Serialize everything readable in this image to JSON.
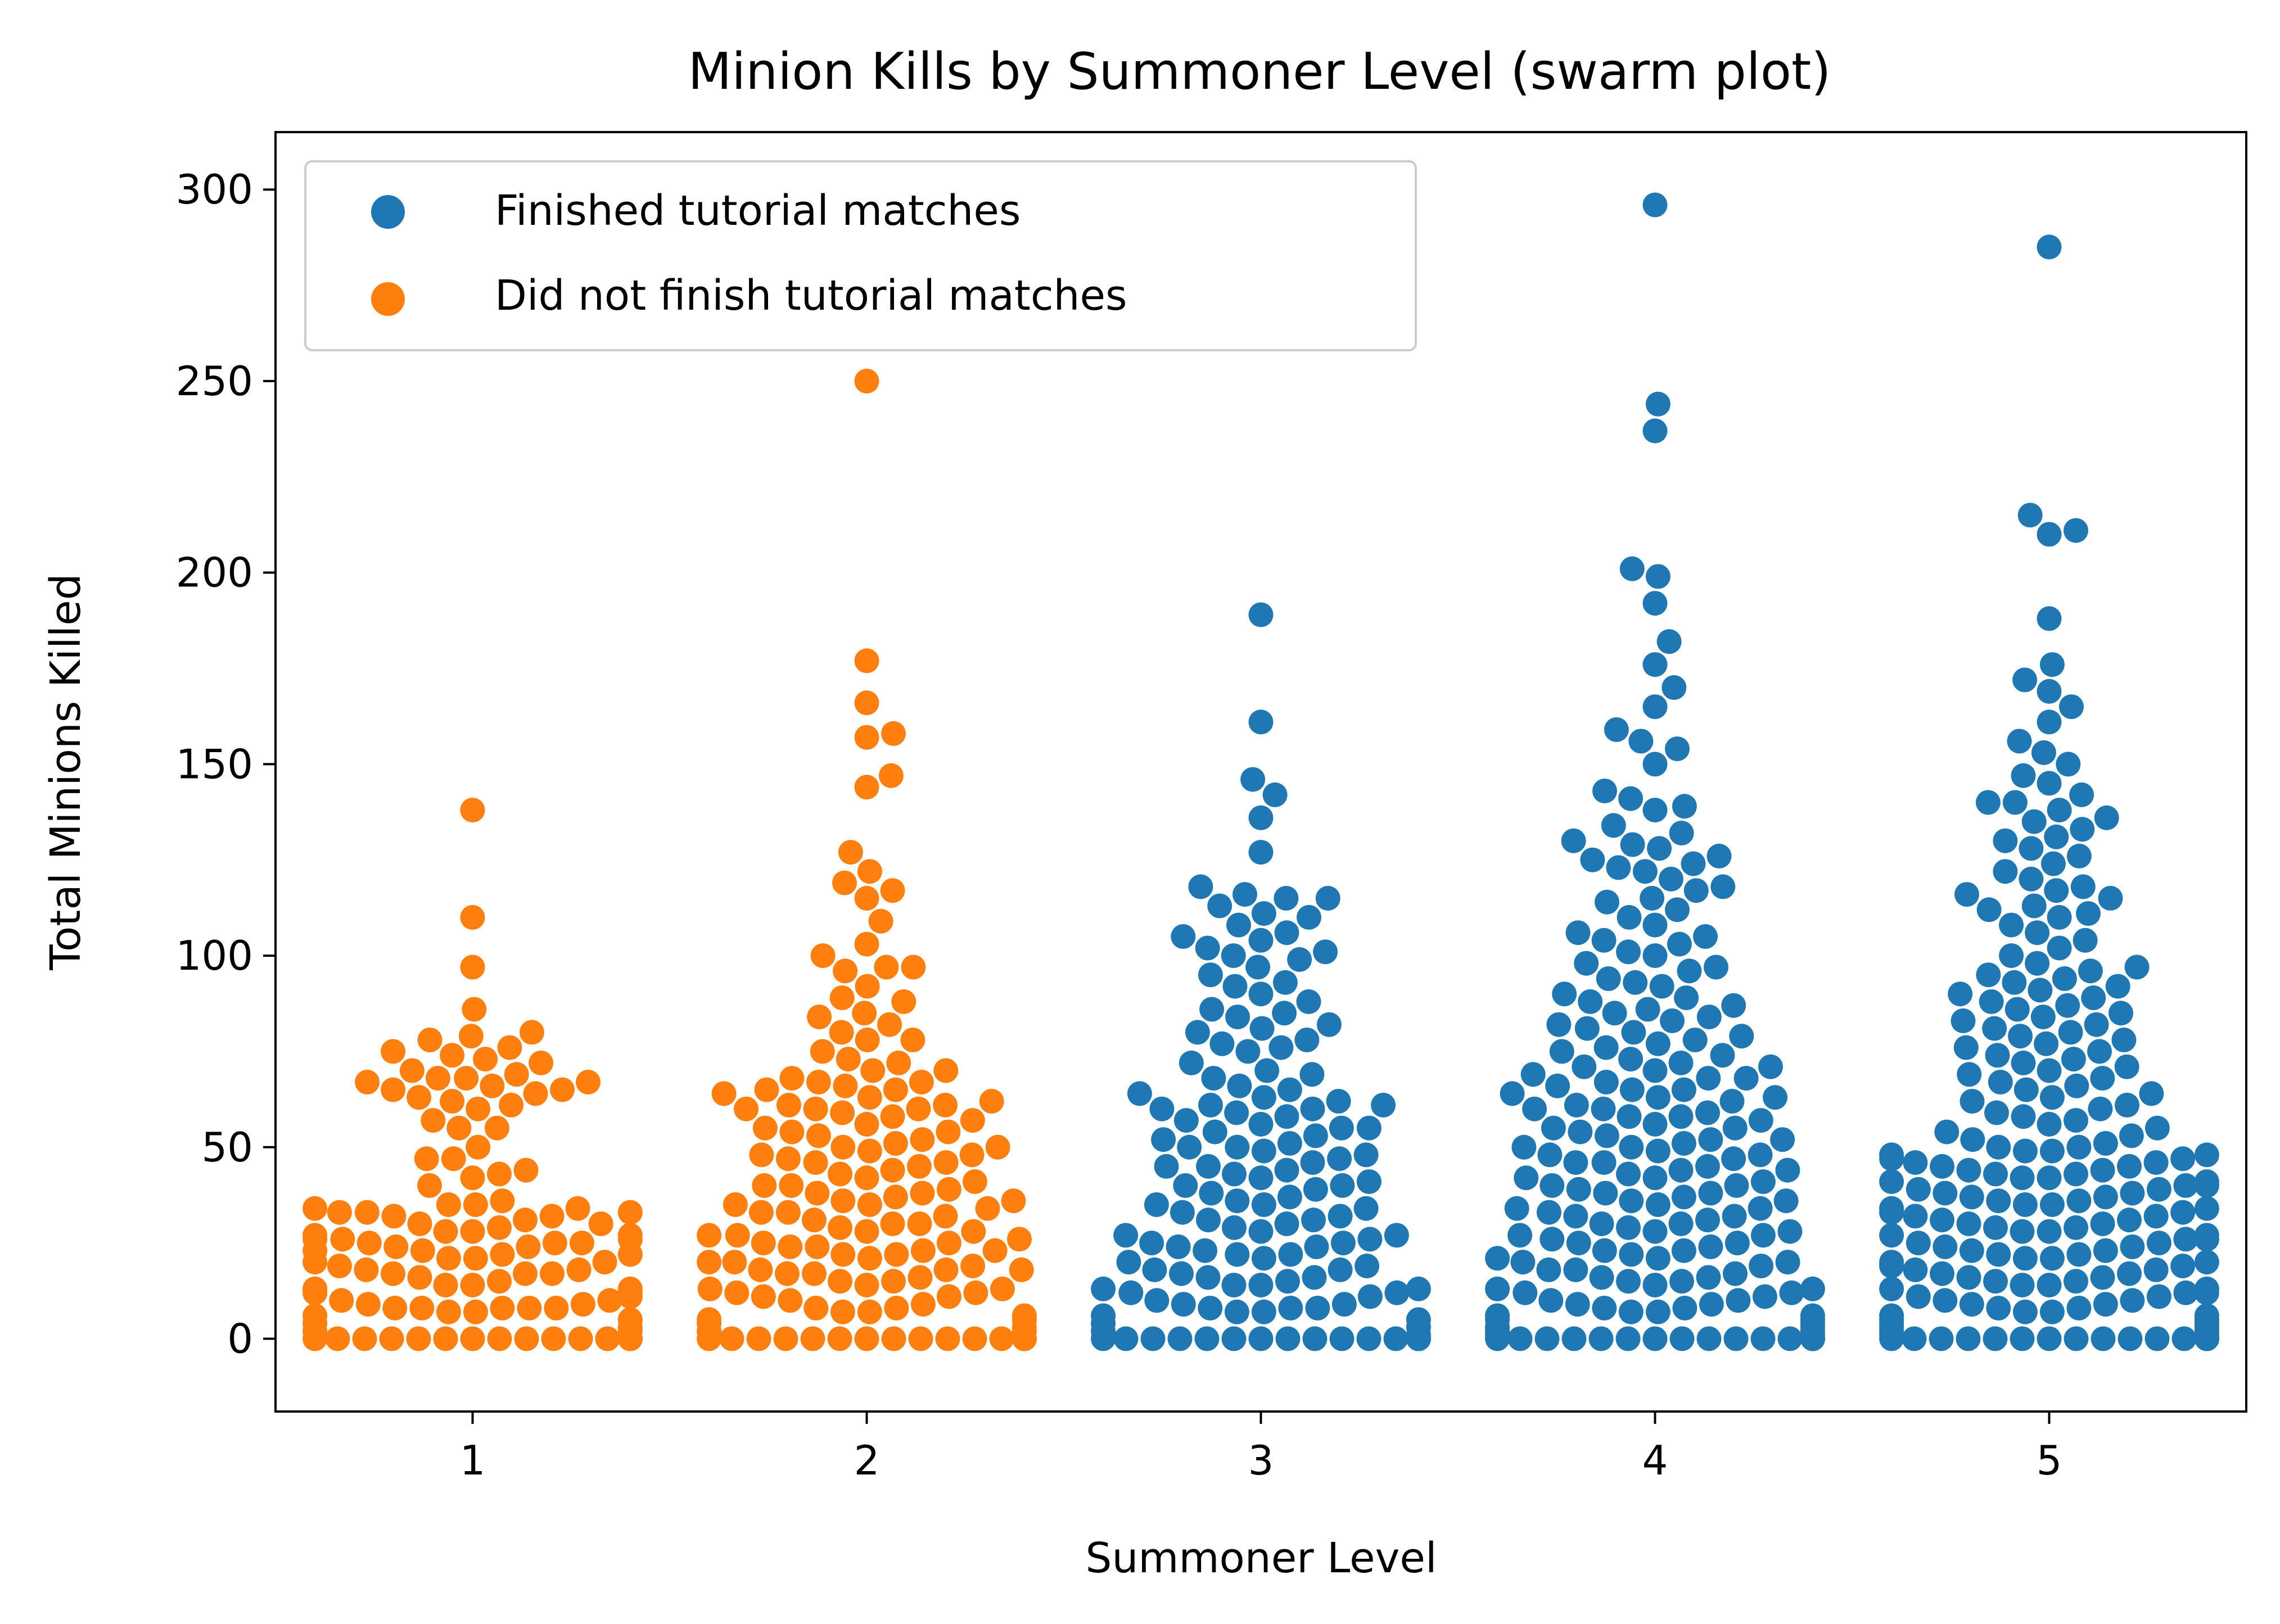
{
  "chart_data": {
    "type": "scatter",
    "style": "swarm",
    "title": "Minion Kills by Summoner Level (swarm plot)",
    "xlabel": "Summoner Level",
    "ylabel": "Total Minions Killed",
    "categories": [
      "1",
      "2",
      "3",
      "4",
      "5"
    ],
    "xlim": [
      0.5,
      5.5
    ],
    "ylim": [
      -19,
      315
    ],
    "yticks": [
      0,
      50,
      100,
      150,
      200,
      250,
      300
    ],
    "grid": false,
    "legend": {
      "placement": "top-left",
      "entries": [
        {
          "label": "Finished tutorial matches",
          "color": "#1f77b4"
        },
        {
          "label": "Did not finish tutorial matches",
          "color": "#ff7f0e"
        }
      ]
    },
    "colors": {
      "finished": "#1f77b4",
      "not_finished": "#ff7f0e"
    },
    "series": [
      {
        "name": "Did not finish tutorial matches",
        "color": "#ff7f0e",
        "groups": [
          {
            "category": "1",
            "values": [
              0,
              0,
              0,
              0,
              0,
              0,
              0,
              0,
              0,
              0,
              0,
              0,
              0,
              0,
              0,
              0,
              0,
              0,
              0,
              2,
              2,
              3,
              4,
              5,
              6,
              7,
              7,
              8,
              8,
              8,
              8,
              8,
              9,
              9,
              10,
              10,
              11,
              12,
              12,
              12,
              13,
              13,
              13,
              14,
              14,
              15,
              16,
              17,
              17,
              17,
              18,
              18,
              19,
              20,
              20,
              21,
              21,
              22,
              22,
              23,
              23,
              24,
              24,
              25,
              25,
              25,
              26,
              26,
              26,
              27,
              27,
              28,
              28,
              29,
              30,
              30,
              31,
              32,
              32,
              33,
              33,
              33,
              34,
              34,
              35,
              35,
              36,
              40,
              42,
              43,
              44,
              47,
              47,
              50,
              55,
              55,
              57,
              60,
              61,
              62,
              63,
              64,
              65,
              65,
              66,
              67,
              67,
              68,
              68,
              69,
              70,
              72,
              73,
              74,
              75,
              76,
              78,
              79,
              80,
              86,
              97,
              110,
              138
            ]
          },
          {
            "category": "2",
            "values": [
              0,
              0,
              0,
              0,
              0,
              0,
              0,
              0,
              0,
              0,
              0,
              0,
              0,
              0,
              0,
              0,
              0,
              0,
              0,
              2,
              2,
              3,
              4,
              5,
              5,
              6,
              7,
              7,
              8,
              8,
              9,
              10,
              11,
              11,
              12,
              12,
              13,
              13,
              14,
              15,
              15,
              16,
              17,
              17,
              18,
              18,
              18,
              19,
              20,
              20,
              21,
              22,
              22,
              23,
              23,
              24,
              24,
              25,
              25,
              26,
              27,
              27,
              28,
              28,
              29,
              30,
              30,
              31,
              32,
              33,
              33,
              34,
              35,
              35,
              36,
              36,
              37,
              38,
              38,
              39,
              40,
              40,
              41,
              42,
              43,
              44,
              45,
              46,
              46,
              47,
              48,
              48,
              49,
              50,
              50,
              51,
              52,
              53,
              54,
              54,
              55,
              56,
              57,
              58,
              59,
              60,
              60,
              60,
              61,
              61,
              62,
              63,
              64,
              65,
              65,
              66,
              67,
              67,
              68,
              70,
              70,
              72,
              73,
              75,
              78,
              78,
              80,
              82,
              84,
              85,
              88,
              89,
              92,
              96,
              97,
              97,
              100,
              103,
              109,
              115,
              117,
              119,
              122,
              127,
              144,
              147,
              157,
              158,
              166,
              177,
              250
            ]
          }
        ]
      },
      {
        "name": "Finished tutorial matches",
        "color": "#1f77b4",
        "groups": [
          {
            "category": "3",
            "values": [
              0,
              0,
              0,
              0,
              0,
              0,
              0,
              0,
              0,
              0,
              0,
              0,
              0,
              0,
              0,
              0,
              0,
              0,
              0,
              0,
              0,
              0,
              1,
              2,
              3,
              4,
              5,
              6,
              7,
              7,
              8,
              8,
              8,
              9,
              9,
              10,
              11,
              12,
              12,
              13,
              13,
              14,
              14,
              15,
              16,
              16,
              17,
              18,
              18,
              19,
              20,
              21,
              22,
              22,
              23,
              24,
              24,
              25,
              25,
              26,
              27,
              27,
              28,
              29,
              30,
              31,
              31,
              32,
              33,
              34,
              35,
              35,
              36,
              37,
              38,
              39,
              40,
              40,
              41,
              42,
              43,
              44,
              45,
              45,
              46,
              47,
              48,
              49,
              50,
              50,
              51,
              52,
              53,
              54,
              55,
              55,
              56,
              57,
              58,
              59,
              60,
              60,
              61,
              61,
              62,
              63,
              64,
              65,
              66,
              68,
              69,
              70,
              72,
              75,
              76,
              77,
              78,
              80,
              81,
              82,
              84,
              85,
              86,
              88,
              90,
              92,
              93,
              95,
              97,
              99,
              100,
              101,
              102,
              104,
              105,
              106,
              108,
              110,
              111,
              113,
              115,
              115,
              116,
              118,
              127,
              136,
              142,
              146,
              161,
              189
            ]
          },
          {
            "category": "4",
            "values": [
              0,
              0,
              0,
              0,
              0,
              0,
              0,
              0,
              0,
              0,
              0,
              0,
              0,
              0,
              0,
              0,
              0,
              1,
              1,
              2,
              2,
              3,
              3,
              4,
              5,
              5,
              6,
              6,
              7,
              7,
              8,
              8,
              9,
              9,
              10,
              10,
              11,
              12,
              12,
              13,
              13,
              14,
              15,
              15,
              16,
              16,
              17,
              18,
              18,
              19,
              20,
              20,
              21,
              21,
              22,
              23,
              23,
              24,
              25,
              25,
              26,
              27,
              27,
              28,
              28,
              29,
              30,
              30,
              31,
              32,
              32,
              33,
              34,
              34,
              35,
              36,
              36,
              37,
              38,
              38,
              39,
              40,
              40,
              41,
              42,
              42,
              43,
              44,
              44,
              45,
              46,
              46,
              47,
              48,
              48,
              49,
              50,
              50,
              51,
              52,
              52,
              53,
              54,
              55,
              55,
              56,
              57,
              58,
              58,
              59,
              60,
              60,
              61,
              62,
              63,
              63,
              64,
              65,
              65,
              66,
              67,
              68,
              68,
              69,
              70,
              71,
              71,
              72,
              73,
              74,
              75,
              76,
              77,
              78,
              79,
              80,
              81,
              82,
              83,
              84,
              85,
              86,
              87,
              88,
              89,
              90,
              92,
              93,
              94,
              96,
              97,
              98,
              100,
              101,
              103,
              104,
              105,
              106,
              108,
              110,
              112,
              114,
              115,
              117,
              118,
              120,
              122,
              123,
              124,
              125,
              126,
              128,
              129,
              130,
              132,
              134,
              138,
              139,
              141,
              143,
              150,
              154,
              156,
              159,
              165,
              170,
              176,
              182,
              192,
              199,
              201,
              237,
              244,
              296
            ]
          },
          {
            "category": "5",
            "values": [
              0,
              0,
              0,
              0,
              0,
              0,
              0,
              0,
              0,
              0,
              0,
              0,
              0,
              0,
              0,
              0,
              0,
              0,
              1,
              1,
              2,
              2,
              3,
              3,
              4,
              4,
              5,
              5,
              6,
              6,
              7,
              7,
              8,
              8,
              9,
              9,
              10,
              10,
              11,
              11,
              12,
              12,
              13,
              13,
              14,
              14,
              15,
              15,
              16,
              16,
              17,
              17,
              18,
              18,
              19,
              19,
              20,
              20,
              21,
              21,
              22,
              22,
              23,
              23,
              24,
              24,
              25,
              25,
              26,
              26,
              27,
              27,
              28,
              28,
              29,
              29,
              30,
              30,
              31,
              31,
              32,
              32,
              33,
              33,
              34,
              34,
              35,
              35,
              36,
              36,
              37,
              37,
              38,
              38,
              39,
              39,
              40,
              40,
              41,
              41,
              42,
              42,
              43,
              43,
              44,
              44,
              45,
              45,
              46,
              46,
              47,
              47,
              48,
              48,
              49,
              49,
              50,
              50,
              51,
              52,
              53,
              54,
              55,
              56,
              57,
              58,
              59,
              60,
              61,
              62,
              63,
              64,
              65,
              66,
              67,
              68,
              69,
              70,
              71,
              72,
              73,
              74,
              75,
              76,
              77,
              78,
              79,
              80,
              81,
              82,
              83,
              84,
              85,
              86,
              87,
              88,
              89,
              90,
              91,
              92,
              93,
              94,
              95,
              96,
              97,
              98,
              100,
              102,
              104,
              106,
              108,
              110,
              111,
              112,
              113,
              115,
              116,
              117,
              118,
              120,
              122,
              124,
              126,
              128,
              130,
              131,
              133,
              135,
              136,
              138,
              140,
              140,
              142,
              145,
              147,
              150,
              153,
              156,
              161,
              165,
              169,
              172,
              176,
              188,
              210,
              211,
              215,
              285
            ]
          }
        ]
      }
    ]
  }
}
